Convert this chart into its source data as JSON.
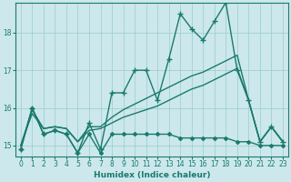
{
  "xlabel": "Humidex (Indice chaleur)",
  "background_color": "#cce8ec",
  "grid_color": "#99cccc",
  "line_color": "#1a7a6e",
  "xlim": [
    -0.5,
    23.5
  ],
  "ylim": [
    14.7,
    18.8
  ],
  "yticks": [
    15,
    16,
    17,
    18
  ],
  "xticks": [
    0,
    1,
    2,
    3,
    4,
    5,
    6,
    7,
    8,
    9,
    10,
    11,
    12,
    13,
    14,
    15,
    16,
    17,
    18,
    19,
    20,
    21,
    22,
    23
  ],
  "series": [
    {
      "x": [
        0,
        1,
        2,
        3,
        4,
        5,
        6,
        7,
        8,
        9,
        10,
        11,
        12,
        13,
        14,
        15,
        16,
        17,
        18,
        19,
        20,
        21,
        22,
        23
      ],
      "y": [
        14.9,
        16.0,
        15.3,
        15.4,
        15.3,
        14.8,
        15.6,
        14.9,
        16.4,
        16.4,
        17.0,
        17.0,
        16.2,
        17.3,
        18.5,
        18.1,
        17.8,
        18.3,
        18.8,
        17.0,
        16.2,
        15.1,
        15.5,
        15.1
      ],
      "marker": "+",
      "markersize": 4,
      "linewidth": 1.0
    },
    {
      "x": [
        0,
        1,
        2,
        3,
        4,
        5,
        6,
        7,
        8,
        9,
        10,
        11,
        12,
        13,
        14,
        15,
        16,
        17,
        18,
        19,
        20,
        21,
        22,
        23
      ],
      "y": [
        14.9,
        16.0,
        15.3,
        15.4,
        15.3,
        14.8,
        15.3,
        14.8,
        15.3,
        15.3,
        15.3,
        15.3,
        15.3,
        15.3,
        15.2,
        15.2,
        15.2,
        15.2,
        15.2,
        15.1,
        15.1,
        15.0,
        15.0,
        15.0
      ],
      "marker": "D",
      "markersize": 2.0,
      "linewidth": 1.0
    },
    {
      "x": [
        0,
        1,
        2,
        3,
        4,
        5,
        6,
        7,
        8,
        9,
        10,
        11,
        12,
        13,
        14,
        15,
        16,
        17,
        18,
        19,
        20,
        21,
        22,
        23
      ],
      "y": [
        15.0,
        15.85,
        15.45,
        15.5,
        15.45,
        15.1,
        15.4,
        15.45,
        15.6,
        15.75,
        15.85,
        15.95,
        16.05,
        16.2,
        16.35,
        16.5,
        16.6,
        16.75,
        16.9,
        17.05,
        16.2,
        15.1,
        15.5,
        15.1
      ],
      "marker": null,
      "markersize": 0,
      "linewidth": 1.0
    },
    {
      "x": [
        0,
        1,
        2,
        3,
        4,
        5,
        6,
        7,
        8,
        9,
        10,
        11,
        12,
        13,
        14,
        15,
        16,
        17,
        18,
        19,
        20,
        21,
        22,
        23
      ],
      "y": [
        15.0,
        15.95,
        15.45,
        15.5,
        15.45,
        15.1,
        15.5,
        15.5,
        15.75,
        15.95,
        16.1,
        16.25,
        16.4,
        16.55,
        16.7,
        16.85,
        16.95,
        17.1,
        17.25,
        17.4,
        16.2,
        15.1,
        15.5,
        15.1
      ],
      "marker": null,
      "markersize": 0,
      "linewidth": 1.0
    }
  ],
  "tick_fontsize": 5.5,
  "xlabel_fontsize": 6.5
}
